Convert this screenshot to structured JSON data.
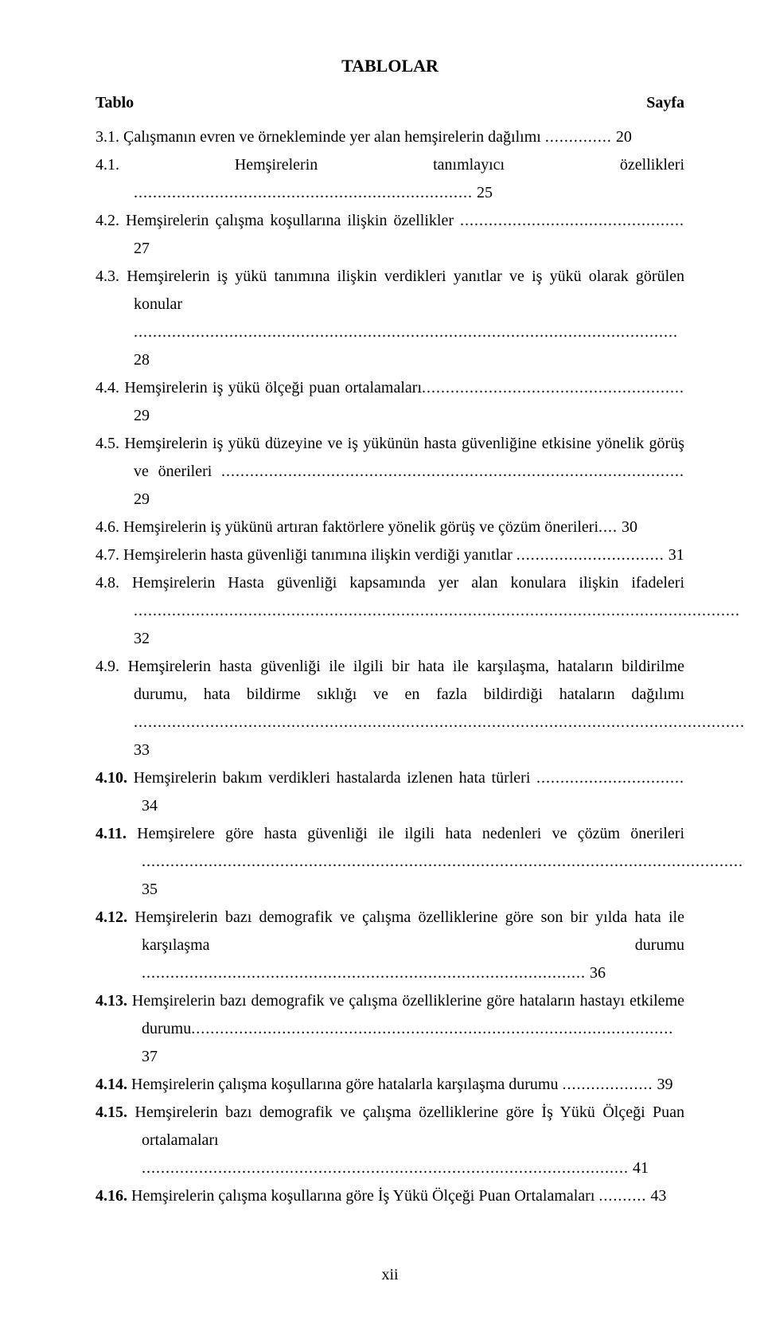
{
  "page": {
    "heading": "TABLOLAR",
    "col_left": "Tablo",
    "col_right": "Sayfa",
    "footer": "xii"
  },
  "entries": [
    {
      "num": "3.1.",
      "text": "Çalışmanın evren ve örnekleminde yer alan hemşirelerin dağılımı ",
      "dots": "..............",
      "page": " 20",
      "bold": false,
      "wide": false
    },
    {
      "num": "4.1.",
      "text": "Hemşirelerin tanımlayıcı özellikleri ",
      "dots": ".......................................................................",
      "page": " 25",
      "bold": false,
      "wide": false
    },
    {
      "num": "4.2.",
      "text": "Hemşirelerin çalışma koşullarına ilişkin özellikler ",
      "dots": "...............................................",
      "page": " 27",
      "bold": false,
      "wide": false
    },
    {
      "num": "4.3.",
      "text": "Hemşirelerin iş yükü tanımına ilişkin verdikleri yanıtlar ve iş yükü olarak görülen konular ",
      "dots": "..................................................................................................................",
      "page": " 28",
      "bold": false,
      "wide": false
    },
    {
      "num": "4.4.",
      "text": "Hemşirelerin iş yükü ölçeği puan ortalamaları",
      "dots": ".......................................................",
      "page": " 29",
      "bold": false,
      "wide": false
    },
    {
      "num": "4.5.",
      "text": "Hemşirelerin iş yükü düzeyine ve iş yükünün hasta güvenliğine etkisine yönelik görüş ve önerileri ",
      "dots": ".................................................................................................",
      "page": " 29",
      "bold": false,
      "wide": false
    },
    {
      "num": "4.6.",
      "text": "Hemşirelerin iş yükünü artıran faktörlere yönelik görüş ve çözüm önerileri",
      "dots": "....",
      "page": " 30",
      "bold": false,
      "wide": false
    },
    {
      "num": "4.7.",
      "text": "Hemşirelerin hasta güvenliği tanımına ilişkin verdiği yanıtlar ",
      "dots": "...............................",
      "page": " 31",
      "bold": false,
      "wide": false
    },
    {
      "num": "4.8.",
      "text": "Hemşirelerin Hasta güvenliği kapsamında yer alan konulara ilişkin ifadeleri ",
      "dots": "...............................................................................................................................",
      "page": " 32",
      "bold": false,
      "wide": false
    },
    {
      "num": "4.9.",
      "text": "Hemşirelerin hasta güvenliği ile ilgili bir hata ile karşılaşma, hataların bildirilme durumu, hata bildirme sıklığı ve en fazla bildirdiği hataların dağılımı ",
      "dots": "................................................................................................................................",
      "page": " 33",
      "bold": false,
      "wide": false
    },
    {
      "num": "4.10.",
      "text": "Hemşirelerin bakım verdikleri hastalarda izlenen hata türleri ",
      "dots": "...............................",
      "page": " 34",
      "bold": true,
      "wide": true
    },
    {
      "num": "4.11.",
      "text": "Hemşirelere göre hasta güvenliği ile ilgili hata nedenleri ve çözüm önerileri ",
      "dots": "..............................................................................................................................",
      "page": " 35",
      "bold": true,
      "wide": true
    },
    {
      "num": "4.12.",
      "text": "Hemşirelerin bazı demografik ve çalışma özelliklerine göre son bir yılda hata ile karşılaşma durumu ",
      "dots": ".............................................................................................",
      "page": " 36",
      "bold": true,
      "wide": true
    },
    {
      "num": "4.13.",
      "text": "Hemşirelerin bazı demografik ve çalışma özelliklerine göre hataların hastayı etkileme durumu",
      "dots": ".....................................................................................................",
      "page": " 37",
      "bold": true,
      "wide": true
    },
    {
      "num": "4.14.",
      "text": "Hemşirelerin çalışma koşullarına göre hatalarla karşılaşma durumu ",
      "dots": "...................",
      "page": " 39",
      "bold": true,
      "wide": true
    },
    {
      "num": "4.15.",
      "text": "Hemşirelerin bazı demografik ve çalışma özelliklerine göre İş Yükü Ölçeği Puan ortalamaları  ",
      "dots": "......................................................................................................",
      "page": " 41",
      "bold": true,
      "wide": true
    },
    {
      "num": "4.16.",
      "text": "Hemşirelerin çalışma koşullarına göre İş Yükü Ölçeği Puan Ortalamaları ",
      "dots": "..........",
      "page": " 43",
      "bold": true,
      "wide": true
    }
  ]
}
